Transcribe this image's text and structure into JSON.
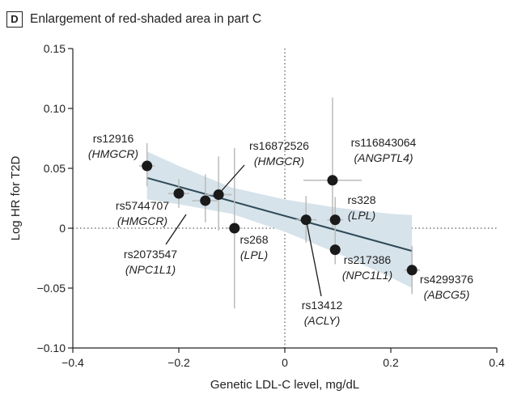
{
  "panel": {
    "letter": "D",
    "title": "Enlargement of red-shaded area in part C"
  },
  "chart_data": {
    "type": "scatter",
    "title": "Enlargement of red-shaded area in part C",
    "xlabel": "Genetic LDL-C level, mg/dL",
    "ylabel": "Log HR for T2D",
    "xlim": [
      -0.4,
      0.4
    ],
    "ylim": [
      -0.1,
      0.15
    ],
    "x_ticks": [
      "−0.4",
      "−0.2",
      "0",
      "0.2",
      "0.4"
    ],
    "y_ticks": [
      "−0.10",
      "−0.05",
      "0",
      "0.05",
      "0.10",
      "0.15"
    ],
    "x_tick_values": [
      -0.4,
      -0.2,
      0,
      0.2,
      0.4
    ],
    "y_tick_values": [
      -0.1,
      -0.05,
      0,
      0.05,
      0.1,
      0.15
    ],
    "reference_lines": {
      "x": 0,
      "y": 0
    },
    "fit_line": {
      "x": [
        -0.26,
        0.24
      ],
      "y": [
        0.042,
        -0.019
      ]
    },
    "confidence_band": {
      "x": [
        -0.26,
        -0.2,
        -0.1,
        0.0,
        0.1,
        0.2,
        0.24
      ],
      "upper": [
        0.064,
        0.052,
        0.034,
        0.024,
        0.017,
        0.012,
        0.011
      ],
      "lower": [
        0.024,
        0.02,
        0.012,
        -0.003,
        -0.021,
        -0.041,
        -0.05
      ]
    },
    "points": [
      {
        "snp": "rs12916",
        "gene": "(HMGCR)",
        "x": -0.26,
        "y": 0.052,
        "x_low": -0.275,
        "x_high": -0.245,
        "y_low": 0.035,
        "y_high": 0.071
      },
      {
        "snp": "rs5744707",
        "gene": "(HMGCR)",
        "x": -0.2,
        "y": 0.029,
        "x_low": -0.22,
        "x_high": -0.18,
        "y_low": 0.017,
        "y_high": 0.041
      },
      {
        "snp": "rs2073547",
        "gene": "(NPC1L1)",
        "x": -0.15,
        "y": 0.023,
        "x_low": -0.175,
        "x_high": -0.125,
        "y_low": 0.005,
        "y_high": 0.045
      },
      {
        "snp": "rs16872526",
        "gene": "(HMGCR)",
        "x": -0.125,
        "y": 0.028,
        "x_low": -0.15,
        "x_high": -0.1,
        "y_low": -0.002,
        "y_high": 0.06
      },
      {
        "snp": "rs268",
        "gene": "(LPL)",
        "x": -0.095,
        "y": 0.0,
        "x_low": -0.11,
        "x_high": -0.08,
        "y_low": -0.067,
        "y_high": 0.067
      },
      {
        "snp": "rs13412",
        "gene": "(ACLY)",
        "x": 0.04,
        "y": 0.007,
        "x_low": 0.02,
        "x_high": 0.06,
        "y_low": -0.012,
        "y_high": 0.027
      },
      {
        "snp": "rs116843064",
        "gene": "(ANGPTL4)",
        "x": 0.09,
        "y": 0.04,
        "x_low": 0.035,
        "x_high": 0.145,
        "y_low": 0.0,
        "y_high": 0.109
      },
      {
        "snp": "rs328",
        "gene": "(LPL)",
        "x": 0.095,
        "y": 0.007,
        "x_low": 0.08,
        "x_high": 0.11,
        "y_low": -0.01,
        "y_high": 0.026
      },
      {
        "snp": "rs217386",
        "gene": "(NPC1L1)",
        "x": 0.095,
        "y": -0.018,
        "x_low": 0.085,
        "x_high": 0.105,
        "y_low": -0.03,
        "y_high": -0.005
      },
      {
        "snp": "rs4299376",
        "gene": "(ABCG5)",
        "x": 0.24,
        "y": -0.035,
        "x_low": 0.225,
        "x_high": 0.255,
        "y_low": -0.055,
        "y_high": -0.015
      }
    ],
    "colors": {
      "band": "#d6e3ea",
      "fit": "#2e4a58",
      "point": "#1a1a1a",
      "error_bar": "#bbbbbb",
      "leader": "#1a1a1a"
    }
  }
}
